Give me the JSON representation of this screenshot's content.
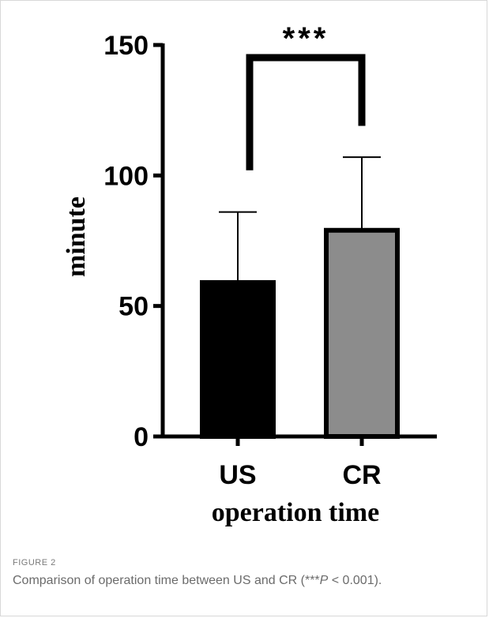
{
  "figure": {
    "label": "FIGURE 2",
    "caption_prefix": "Comparison of operation time between US and CR (***",
    "caption_p": "P",
    "caption_suffix": " < 0.001)."
  },
  "chart_data": {
    "type": "bar",
    "categories": [
      "US",
      "CR"
    ],
    "values": [
      59,
      79
    ],
    "error_upper": [
      86,
      107
    ],
    "colors": [
      "#000000",
      "#8c8c8c"
    ],
    "ylabel": "minute",
    "xlabel": "operation time",
    "ylim": [
      0,
      150
    ],
    "yticks": [
      0,
      50,
      100,
      150
    ],
    "grid": false,
    "significance": {
      "between": [
        "US",
        "CR"
      ],
      "label": "***"
    }
  }
}
